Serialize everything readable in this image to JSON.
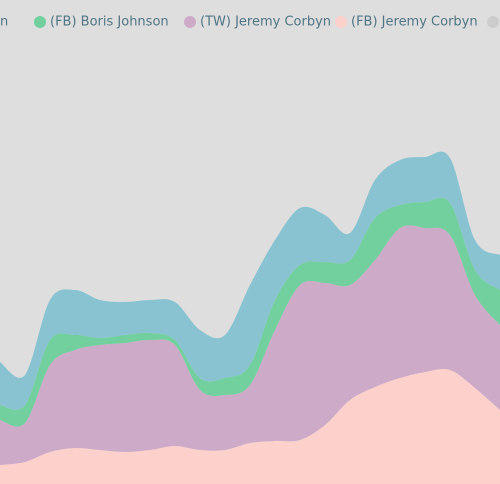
{
  "chart_data": {
    "type": "area",
    "stacked": true,
    "ylim": [
      0,
      484
    ],
    "series": [
      {
        "name": "(FB) Jeremy Corbyn",
        "color": "#fdd1cb",
        "values": [
          19,
          22,
          32,
          36,
          34,
          32,
          34,
          38,
          34,
          34,
          41,
          43,
          44,
          59,
          84,
          97,
          106,
          112,
          114,
          96,
          74
        ]
      },
      {
        "name": "(TW) Jeremy Corbyn",
        "color": "#cdabc8",
        "values": [
          45,
          39,
          87,
          98,
          105,
          109,
          110,
          101,
          60,
          55,
          58,
          111,
          155,
          142,
          115,
          127,
          150,
          144,
          135,
          93,
          85
        ]
      },
      {
        "name": "(FB) Boris Johnson",
        "color": "#72cf9e",
        "values": [
          15,
          18,
          25,
          15,
          7,
          8,
          7,
          5,
          12,
          17,
          20,
          30,
          20,
          21,
          25,
          42,
          23,
          26,
          32,
          25,
          35
        ]
      },
      {
        "name": "n",
        "color": "#89c3d2",
        "values": [
          43,
          30,
          40,
          45,
          38,
          33,
          33,
          38,
          48,
          43,
          80,
          60,
          57,
          47,
          27,
          38,
          45,
          45,
          45,
          30,
          35
        ]
      }
    ]
  }
}
